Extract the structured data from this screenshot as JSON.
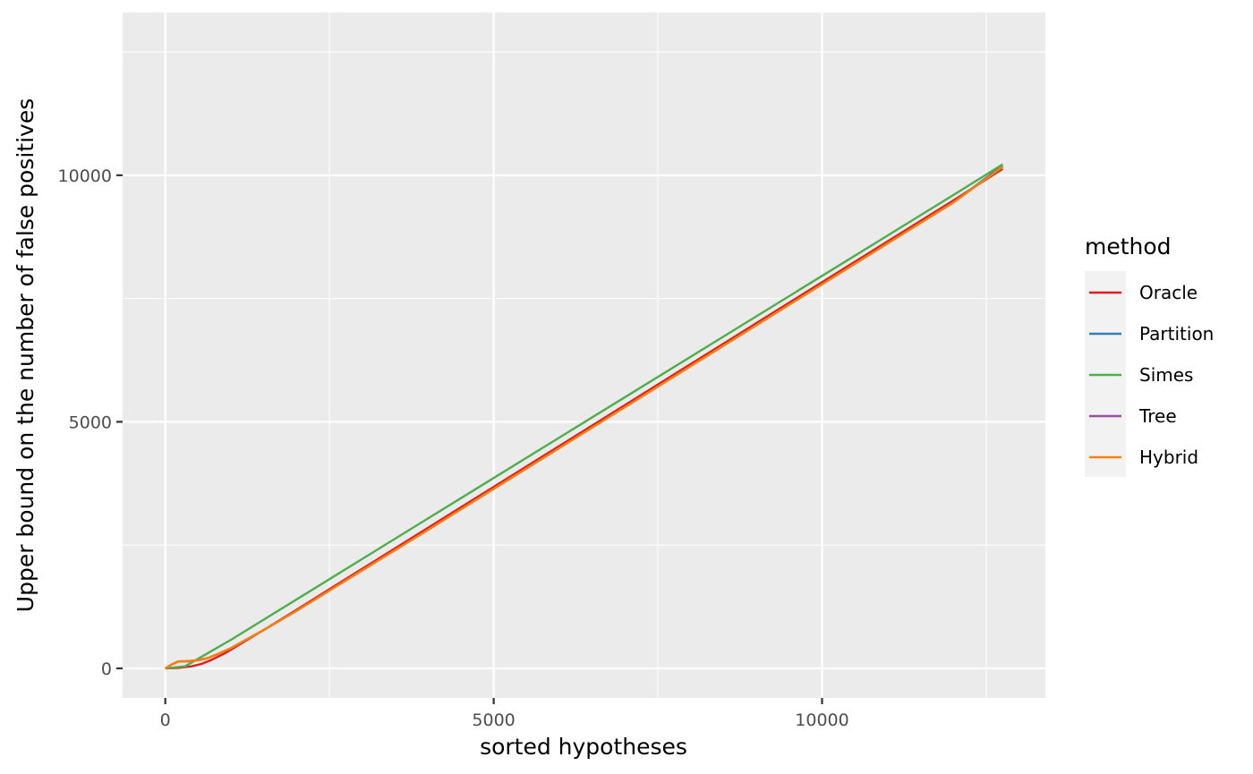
{
  "chart_data": {
    "type": "line",
    "xlabel": "sorted hypotheses",
    "ylabel": "Upper bound on the number of false positives",
    "xlim": [
      -650,
      13400
    ],
    "ylim": [
      -600,
      13300
    ],
    "x_ticks": [
      0,
      5000,
      10000
    ],
    "x_tick_labels": [
      "0",
      "5000",
      "10000"
    ],
    "y_ticks": [
      0,
      5000,
      10000
    ],
    "y_tick_labels": [
      "0",
      "5000",
      "10000"
    ],
    "x_minor_ticks": [
      2500,
      7500,
      12500
    ],
    "y_minor_ticks": [
      2500,
      7500,
      12500
    ],
    "grid": true,
    "legend": {
      "title": "method",
      "placement": "right"
    },
    "series": [
      {
        "name": "Oracle",
        "color": "#E41A1C",
        "x": [
          1,
          200,
          400,
          550,
          700,
          900,
          1200,
          1600,
          2000,
          3000,
          4000,
          5000,
          6000,
          7000,
          8000,
          9000,
          10000,
          11000,
          12000,
          12750
        ],
        "y": [
          0,
          10,
          40,
          90,
          170,
          300,
          540,
          860,
          1190,
          2020,
          2850,
          3680,
          4510,
          5340,
          6170,
          7000,
          7830,
          8660,
          9490,
          10130
        ]
      },
      {
        "name": "Partition",
        "color": "#377EB8",
        "x": [
          1,
          100,
          200,
          350,
          500,
          650,
          800,
          1000,
          1500,
          2000,
          3000,
          4000,
          5000,
          6000,
          7000,
          8000,
          9000,
          10000,
          11000,
          12000,
          12750
        ],
        "y": [
          0,
          80,
          140,
          145,
          165,
          210,
          290,
          410,
          780,
          1170,
          1990,
          2810,
          3640,
          4470,
          5300,
          6130,
          6960,
          7790,
          8620,
          9450,
          10200
        ]
      },
      {
        "name": "Simes",
        "color": "#4DAF4A",
        "x": [
          1,
          300,
          1000,
          2000,
          3000,
          4000,
          5000,
          6000,
          7000,
          8000,
          9000,
          10000,
          11000,
          12000,
          12750
        ],
        "y": [
          0,
          40,
          580,
          1400,
          2220,
          3040,
          3860,
          4680,
          5500,
          6320,
          7140,
          7960,
          8780,
          9600,
          10220
        ]
      },
      {
        "name": "Tree",
        "color": "#984EA3",
        "x": [
          1,
          100,
          200,
          350,
          500,
          650,
          800,
          1000,
          1500,
          2000,
          3000,
          4000,
          5000,
          6000,
          7000,
          8000,
          9000,
          10000,
          11000,
          12000,
          12750
        ],
        "y": [
          0,
          80,
          140,
          145,
          165,
          210,
          290,
          410,
          780,
          1170,
          1990,
          2810,
          3640,
          4470,
          5300,
          6130,
          6960,
          7790,
          8620,
          9450,
          10170
        ]
      },
      {
        "name": "Hybrid",
        "color": "#FF7F00",
        "x": [
          1,
          100,
          200,
          350,
          500,
          650,
          800,
          1000,
          1500,
          2000,
          3000,
          4000,
          5000,
          6000,
          7000,
          8000,
          9000,
          10000,
          11000,
          12000,
          12750
        ],
        "y": [
          0,
          80,
          140,
          145,
          165,
          210,
          290,
          410,
          780,
          1170,
          1990,
          2810,
          3640,
          4470,
          5300,
          6130,
          6960,
          7790,
          8620,
          9450,
          10170
        ]
      }
    ]
  }
}
